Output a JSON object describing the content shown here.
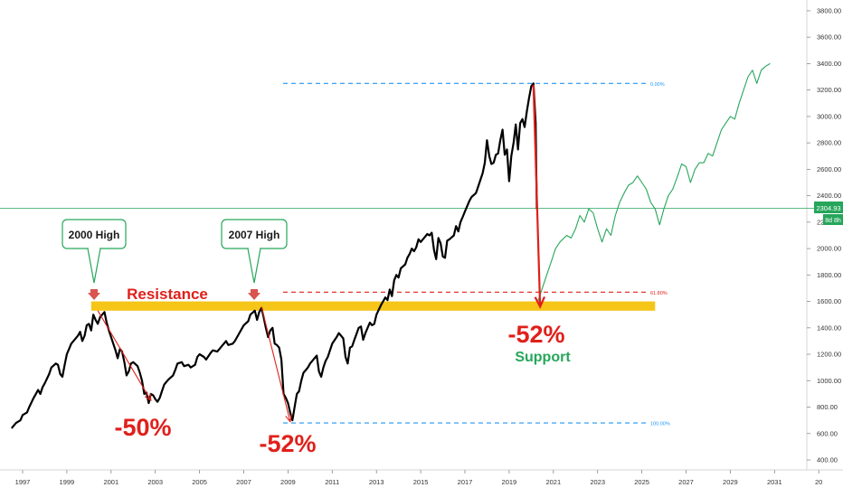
{
  "chart_data": {
    "type": "line",
    "title": "",
    "xlabel": "",
    "ylabel": "",
    "xlim": [
      1996.5,
      2032
    ],
    "ylim": [
      300,
      3950
    ],
    "x_ticks": [
      "1997",
      "1999",
      "2001",
      "2003",
      "2005",
      "2007",
      "2009",
      "2011",
      "2013",
      "2015",
      "2017",
      "2019",
      "2021",
      "2023",
      "2025",
      "2027",
      "2029",
      "2031",
      "20"
    ],
    "y_ticks": [
      "400.00",
      "600.00",
      "800.00",
      "1000.00",
      "1200.00",
      "1400.00",
      "1600.00",
      "1800.00",
      "2000.00",
      "2200.00",
      "2400.00",
      "2600.00",
      "2800.00",
      "3000.00",
      "3200.00",
      "3400.00",
      "3600.00",
      "3800.00"
    ],
    "price_label": "2304.93",
    "countdown_label": "8d 8h",
    "colors": {
      "price": "#000000",
      "projection": "#26a65b",
      "resistance": "#f5c518",
      "arrow": "#e0201b",
      "fib_outer": "#2196f3",
      "fib_mid": "#e0201b",
      "callout_border": "#26a65b",
      "price_line": "#26a65b"
    },
    "series": [
      {
        "values": [
          [
            1996.5,
            640
          ],
          [
            1996.7,
            680
          ],
          [
            1996.9,
            700
          ],
          [
            1997.0,
            740
          ],
          [
            1997.2,
            760
          ],
          [
            1997.3,
            800
          ],
          [
            1997.5,
            870
          ],
          [
            1997.6,
            900
          ],
          [
            1997.7,
            930
          ],
          [
            1997.8,
            900
          ],
          [
            1997.9,
            950
          ],
          [
            1998.0,
            980
          ],
          [
            1998.2,
            1050
          ],
          [
            1998.3,
            1100
          ],
          [
            1998.5,
            1130
          ],
          [
            1998.6,
            1120
          ],
          [
            1998.7,
            1050
          ],
          [
            1998.8,
            1030
          ],
          [
            1998.9,
            1120
          ],
          [
            1999.0,
            1200
          ],
          [
            1999.2,
            1280
          ],
          [
            1999.3,
            1300
          ],
          [
            1999.5,
            1340
          ],
          [
            1999.6,
            1370
          ],
          [
            1999.7,
            1300
          ],
          [
            1999.8,
            1340
          ],
          [
            1999.9,
            1420
          ],
          [
            2000.0,
            1430
          ],
          [
            2000.1,
            1380
          ],
          [
            2000.2,
            1500
          ],
          [
            2000.3,
            1460
          ],
          [
            2000.4,
            1430
          ],
          [
            2000.5,
            1480
          ],
          [
            2000.6,
            1500
          ],
          [
            2000.7,
            1520
          ],
          [
            2000.8,
            1440
          ],
          [
            2000.9,
            1380
          ],
          [
            2001.0,
            1330
          ],
          [
            2001.2,
            1230
          ],
          [
            2001.3,
            1170
          ],
          [
            2001.4,
            1240
          ],
          [
            2001.5,
            1220
          ],
          [
            2001.6,
            1140
          ],
          [
            2001.7,
            1040
          ],
          [
            2001.8,
            1070
          ],
          [
            2001.9,
            1130
          ],
          [
            2002.0,
            1140
          ],
          [
            2002.2,
            1110
          ],
          [
            2002.3,
            1060
          ],
          [
            2002.4,
            1000
          ],
          [
            2002.5,
            900
          ],
          [
            2002.6,
            910
          ],
          [
            2002.7,
            830
          ],
          [
            2002.8,
            900
          ],
          [
            2002.9,
            890
          ],
          [
            2003.0,
            860
          ],
          [
            2003.1,
            840
          ],
          [
            2003.2,
            870
          ],
          [
            2003.3,
            920
          ],
          [
            2003.4,
            970
          ],
          [
            2003.5,
            990
          ],
          [
            2003.6,
            1010
          ],
          [
            2003.8,
            1040
          ],
          [
            2003.9,
            1080
          ],
          [
            2004.0,
            1130
          ],
          [
            2004.2,
            1140
          ],
          [
            2004.3,
            1110
          ],
          [
            2004.5,
            1120
          ],
          [
            2004.6,
            1100
          ],
          [
            2004.8,
            1120
          ],
          [
            2004.9,
            1180
          ],
          [
            2005.0,
            1200
          ],
          [
            2005.2,
            1180
          ],
          [
            2005.3,
            1160
          ],
          [
            2005.5,
            1210
          ],
          [
            2005.6,
            1230
          ],
          [
            2005.8,
            1220
          ],
          [
            2006.0,
            1260
          ],
          [
            2006.2,
            1300
          ],
          [
            2006.3,
            1270
          ],
          [
            2006.5,
            1280
          ],
          [
            2006.6,
            1300
          ],
          [
            2006.8,
            1360
          ],
          [
            2007.0,
            1420
          ],
          [
            2007.2,
            1450
          ],
          [
            2007.3,
            1500
          ],
          [
            2007.5,
            1530
          ],
          [
            2007.6,
            1460
          ],
          [
            2007.7,
            1520
          ],
          [
            2007.8,
            1550
          ],
          [
            2007.9,
            1480
          ],
          [
            2008.0,
            1400
          ],
          [
            2008.1,
            1330
          ],
          [
            2008.2,
            1380
          ],
          [
            2008.3,
            1400
          ],
          [
            2008.4,
            1280
          ],
          [
            2008.5,
            1270
          ],
          [
            2008.6,
            1250
          ],
          [
            2008.7,
            1160
          ],
          [
            2008.8,
            900
          ],
          [
            2008.9,
            870
          ],
          [
            2009.0,
            830
          ],
          [
            2009.1,
            760
          ],
          [
            2009.2,
            700
          ],
          [
            2009.3,
            800
          ],
          [
            2009.4,
            900
          ],
          [
            2009.5,
            920
          ],
          [
            2009.6,
            1000
          ],
          [
            2009.7,
            1060
          ],
          [
            2009.8,
            1080
          ],
          [
            2009.9,
            1100
          ],
          [
            2010.0,
            1130
          ],
          [
            2010.2,
            1170
          ],
          [
            2010.3,
            1190
          ],
          [
            2010.4,
            1070
          ],
          [
            2010.5,
            1030
          ],
          [
            2010.6,
            1100
          ],
          [
            2010.7,
            1150
          ],
          [
            2010.8,
            1180
          ],
          [
            2011.0,
            1280
          ],
          [
            2011.2,
            1330
          ],
          [
            2011.3,
            1360
          ],
          [
            2011.5,
            1320
          ],
          [
            2011.6,
            1180
          ],
          [
            2011.7,
            1130
          ],
          [
            2011.8,
            1250
          ],
          [
            2011.9,
            1260
          ],
          [
            2012.0,
            1310
          ],
          [
            2012.2,
            1400
          ],
          [
            2012.3,
            1410
          ],
          [
            2012.4,
            1310
          ],
          [
            2012.5,
            1360
          ],
          [
            2012.7,
            1440
          ],
          [
            2012.8,
            1420
          ],
          [
            2012.9,
            1430
          ],
          [
            2013.0,
            1500
          ],
          [
            2013.2,
            1570
          ],
          [
            2013.3,
            1600
          ],
          [
            2013.4,
            1630
          ],
          [
            2013.5,
            1610
          ],
          [
            2013.6,
            1690
          ],
          [
            2013.7,
            1640
          ],
          [
            2013.8,
            1760
          ],
          [
            2013.9,
            1800
          ],
          [
            2014.0,
            1780
          ],
          [
            2014.1,
            1850
          ],
          [
            2014.3,
            1880
          ],
          [
            2014.4,
            1930
          ],
          [
            2014.5,
            1960
          ],
          [
            2014.6,
            2000
          ],
          [
            2014.7,
            1980
          ],
          [
            2014.8,
            2010
          ],
          [
            2014.9,
            2070
          ],
          [
            2015.0,
            2050
          ],
          [
            2015.2,
            2090
          ],
          [
            2015.3,
            2110
          ],
          [
            2015.4,
            2100
          ],
          [
            2015.5,
            2120
          ],
          [
            2015.6,
            1990
          ],
          [
            2015.7,
            1920
          ],
          [
            2015.8,
            2080
          ],
          [
            2015.9,
            2040
          ],
          [
            2016.0,
            1940
          ],
          [
            2016.1,
            1930
          ],
          [
            2016.2,
            2060
          ],
          [
            2016.3,
            2070
          ],
          [
            2016.5,
            2100
          ],
          [
            2016.6,
            2170
          ],
          [
            2016.7,
            2130
          ],
          [
            2016.8,
            2200
          ],
          [
            2016.9,
            2240
          ],
          [
            2017.0,
            2280
          ],
          [
            2017.2,
            2360
          ],
          [
            2017.3,
            2390
          ],
          [
            2017.5,
            2420
          ],
          [
            2017.6,
            2470
          ],
          [
            2017.7,
            2520
          ],
          [
            2017.8,
            2570
          ],
          [
            2017.9,
            2650
          ],
          [
            2018.0,
            2820
          ],
          [
            2018.1,
            2700
          ],
          [
            2018.2,
            2640
          ],
          [
            2018.3,
            2650
          ],
          [
            2018.4,
            2710
          ],
          [
            2018.5,
            2720
          ],
          [
            2018.6,
            2820
          ],
          [
            2018.7,
            2900
          ],
          [
            2018.8,
            2710
          ],
          [
            2018.9,
            2750
          ],
          [
            2019.0,
            2510
          ],
          [
            2019.1,
            2700
          ],
          [
            2019.2,
            2800
          ],
          [
            2019.3,
            2940
          ],
          [
            2019.4,
            2750
          ],
          [
            2019.5,
            2950
          ],
          [
            2019.6,
            2980
          ],
          [
            2019.7,
            2920
          ],
          [
            2019.8,
            3040
          ],
          [
            2019.9,
            3140
          ],
          [
            2020.0,
            3230
          ],
          [
            2020.1,
            3250
          ],
          [
            2020.2,
            2950
          ],
          [
            2020.25,
            2300
          ]
        ]
      },
      {
        "values": [
          [
            2020.3,
            1600
          ],
          [
            2020.6,
            1750
          ],
          [
            2020.9,
            1900
          ],
          [
            2021.1,
            2000
          ],
          [
            2021.3,
            2050
          ],
          [
            2021.6,
            2100
          ],
          [
            2021.8,
            2080
          ],
          [
            2022.0,
            2150
          ],
          [
            2022.2,
            2250
          ],
          [
            2022.4,
            2200
          ],
          [
            2022.6,
            2300
          ],
          [
            2022.8,
            2270
          ],
          [
            2023.0,
            2150
          ],
          [
            2023.2,
            2050
          ],
          [
            2023.4,
            2150
          ],
          [
            2023.6,
            2100
          ],
          [
            2023.8,
            2250
          ],
          [
            2024.0,
            2350
          ],
          [
            2024.2,
            2420
          ],
          [
            2024.4,
            2480
          ],
          [
            2024.6,
            2500
          ],
          [
            2024.8,
            2550
          ],
          [
            2025.0,
            2500
          ],
          [
            2025.2,
            2450
          ],
          [
            2025.4,
            2350
          ],
          [
            2025.6,
            2300
          ],
          [
            2025.8,
            2180
          ],
          [
            2026.0,
            2300
          ],
          [
            2026.2,
            2400
          ],
          [
            2026.4,
            2450
          ],
          [
            2026.6,
            2540
          ],
          [
            2026.8,
            2640
          ],
          [
            2027.0,
            2620
          ],
          [
            2027.2,
            2500
          ],
          [
            2027.4,
            2600
          ],
          [
            2027.6,
            2650
          ],
          [
            2027.8,
            2650
          ],
          [
            2028.0,
            2720
          ],
          [
            2028.2,
            2700
          ],
          [
            2028.4,
            2800
          ],
          [
            2028.6,
            2900
          ],
          [
            2028.8,
            2950
          ],
          [
            2029.0,
            3000
          ],
          [
            2029.2,
            2980
          ],
          [
            2029.4,
            3100
          ],
          [
            2029.6,
            3200
          ],
          [
            2029.8,
            3300
          ],
          [
            2030.0,
            3350
          ],
          [
            2030.2,
            3250
          ],
          [
            2030.4,
            3350
          ],
          [
            2030.6,
            3380
          ],
          [
            2030.8,
            3400
          ]
        ]
      }
    ],
    "annotations": {
      "callouts": [
        {
          "text": "2000 High",
          "x": 2000.4,
          "y": 1555
        },
        {
          "text": "2007 High",
          "x": 2007.7,
          "y": 1565
        }
      ],
      "resistance_label": "Resistance",
      "drops": [
        {
          "text": "-50%",
          "from": [
            2000.4,
            1530
          ],
          "to": [
            2002.8,
            850
          ]
        },
        {
          "text": "-52%",
          "from": [
            2007.8,
            1560
          ],
          "to": [
            2009.1,
            690
          ]
        },
        {
          "text": "-52%",
          "from": [
            2020.1,
            3240
          ],
          "to": [
            2020.4,
            1560
          ]
        }
      ],
      "support_label": "Support",
      "resistance_zone": {
        "y0": 1530,
        "y1": 1600,
        "x0": 2000.1,
        "x1": 2025.6
      },
      "fib_levels": [
        {
          "label": "0.00%",
          "value": 3250
        },
        {
          "label": "61.80%",
          "value": 1670
        },
        {
          "label": "100.00%",
          "value": 680
        }
      ]
    }
  }
}
